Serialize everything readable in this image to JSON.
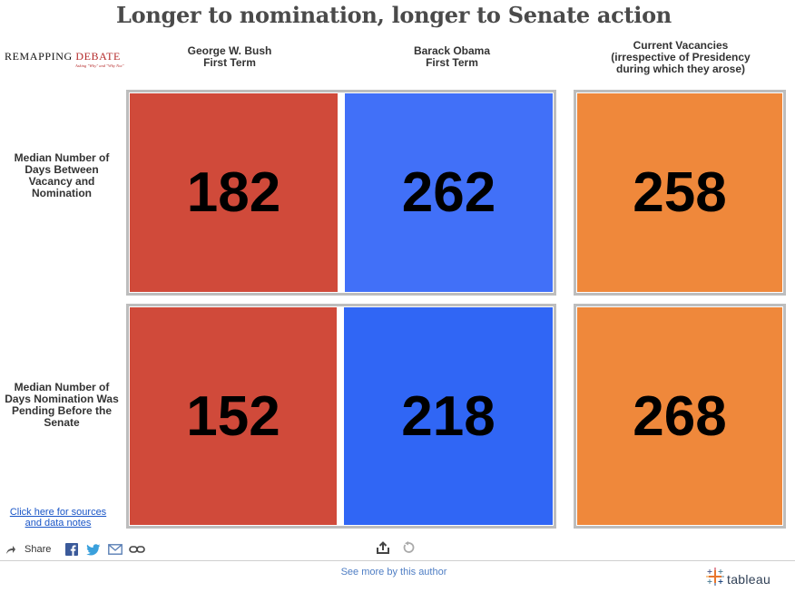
{
  "title": "Longer to nomination, longer to Senate action",
  "logo": {
    "word1": "REMAPPING",
    "word2": "DEBATE",
    "tagline": "Asking \"Why\" and \"Why Not\""
  },
  "columns": [
    {
      "line1": "George W. Bush",
      "line2": "First Term",
      "line3": ""
    },
    {
      "line1": "Barack Obama",
      "line2": "First Term",
      "line3": ""
    },
    {
      "line1": "Current Vacancies",
      "line2": "(irrespective of Presidency",
      "line3": "during which they arose)"
    }
  ],
  "rows": [
    {
      "line1": "Median Number of",
      "line2": "Days Between",
      "line3": "Vacancy and",
      "line4": "Nomination"
    },
    {
      "line1": "Median Number of",
      "line2": "Days Nomination Was",
      "line3": "Pending Before the",
      "line4": "Senate"
    }
  ],
  "chart_data": {
    "type": "table",
    "title": "Longer to nomination, longer to Senate action",
    "columns": [
      "George W. Bush First Term",
      "Barack Obama First Term",
      "Current Vacancies (irrespective of Presidency during which they arose)"
    ],
    "rows": [
      "Median Number of Days Between Vacancy and Nomination",
      "Median Number of Days Nomination Was Pending Before the Senate"
    ],
    "values": [
      [
        182,
        262,
        258
      ],
      [
        152,
        218,
        268
      ]
    ],
    "colors": [
      [
        "#d04a3a",
        "#4170f8",
        "#ef883b"
      ],
      [
        "#d04a3a",
        "#3066f5",
        "#ef883b"
      ]
    ]
  },
  "footer": {
    "sources_line1": "Click here for sources",
    "sources_line2": "and data notes",
    "share_label": "Share",
    "see_more": "See more by this author",
    "tableau": "tableau"
  }
}
